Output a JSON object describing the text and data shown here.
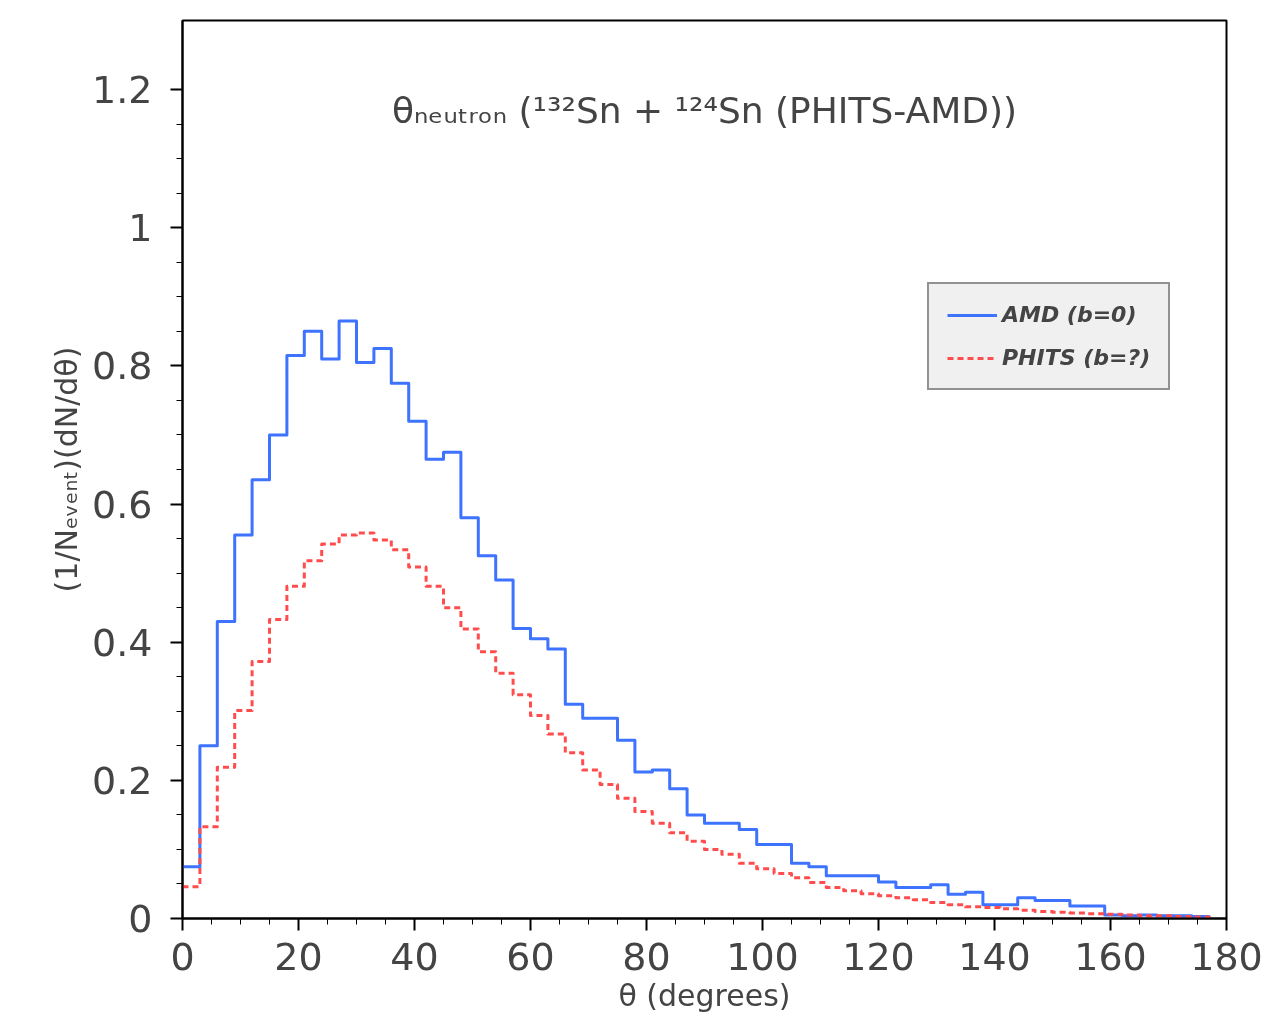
{
  "chart_data": {
    "type": "step",
    "title": "θₙₑᵤₜᵣₒₙ (¹³²Sn + ¹²⁴Sn (PHITS-AMD))",
    "xlabel": "θ (degrees)",
    "ylabel": "(1/Nₑᵥₑₙₜ)(dN/dθ)",
    "x": [
      0,
      3,
      6,
      9,
      12,
      15,
      18,
      21,
      24,
      27,
      30,
      33,
      36,
      39,
      42,
      45,
      48,
      51,
      54,
      57,
      60,
      63,
      66,
      69,
      72,
      75,
      78,
      81,
      84,
      87,
      90,
      93,
      96,
      99,
      102,
      105,
      108,
      111,
      114,
      117,
      120,
      123,
      126,
      129,
      132,
      135,
      138,
      141,
      144,
      147,
      150,
      153,
      156,
      159,
      162,
      165,
      168,
      171,
      174,
      177
    ],
    "series": [
      {
        "name": "AMD (b=0)",
        "color": "#3d73ff",
        "line_style": "solid",
        "values": [
          0.075,
          0.25,
          0.43,
          0.555,
          0.635,
          0.7,
          0.815,
          0.85,
          0.81,
          0.865,
          0.805,
          0.825,
          0.775,
          0.72,
          0.665,
          0.675,
          0.58,
          0.525,
          0.49,
          0.42,
          0.405,
          0.39,
          0.31,
          0.29,
          0.29,
          0.258,
          0.212,
          0.215,
          0.188,
          0.15,
          0.138,
          0.138,
          0.129,
          0.107,
          0.107,
          0.08,
          0.075,
          0.062,
          0.062,
          0.062,
          0.053,
          0.045,
          0.045,
          0.049,
          0.035,
          0.038,
          0.02,
          0.02,
          0.03,
          0.026,
          0.026,
          0.018,
          0.018,
          0.005,
          0.004,
          0.005,
          0.004,
          0.004,
          0.003,
          0.001
        ]
      },
      {
        "name": "PHITS (b=?)",
        "color": "#ff4d4d",
        "line_style": "dashed",
        "values": [
          0.046,
          0.133,
          0.219,
          0.301,
          0.372,
          0.433,
          0.481,
          0.518,
          0.542,
          0.555,
          0.558,
          0.548,
          0.534,
          0.509,
          0.481,
          0.45,
          0.419,
          0.386,
          0.355,
          0.324,
          0.294,
          0.267,
          0.24,
          0.215,
          0.194,
          0.174,
          0.155,
          0.138,
          0.124,
          0.112,
          0.1,
          0.093,
          0.08,
          0.072,
          0.065,
          0.059,
          0.052,
          0.045,
          0.04,
          0.036,
          0.033,
          0.03,
          0.027,
          0.023,
          0.02,
          0.017,
          0.016,
          0.014,
          0.012,
          0.01,
          0.009,
          0.008,
          0.007,
          0.006,
          0.005,
          0.004,
          0.004,
          0.003,
          0.002,
          0.001
        ]
      }
    ],
    "xlim": [
      0,
      180
    ],
    "xticks": [
      0,
      20,
      40,
      60,
      80,
      100,
      120,
      140,
      160,
      180
    ],
    "ylim": [
      0,
      1.3
    ],
    "yticks": [
      0,
      0.2,
      0.4,
      0.6,
      0.8,
      1,
      1.2
    ],
    "legend": "top right",
    "grid": false
  }
}
